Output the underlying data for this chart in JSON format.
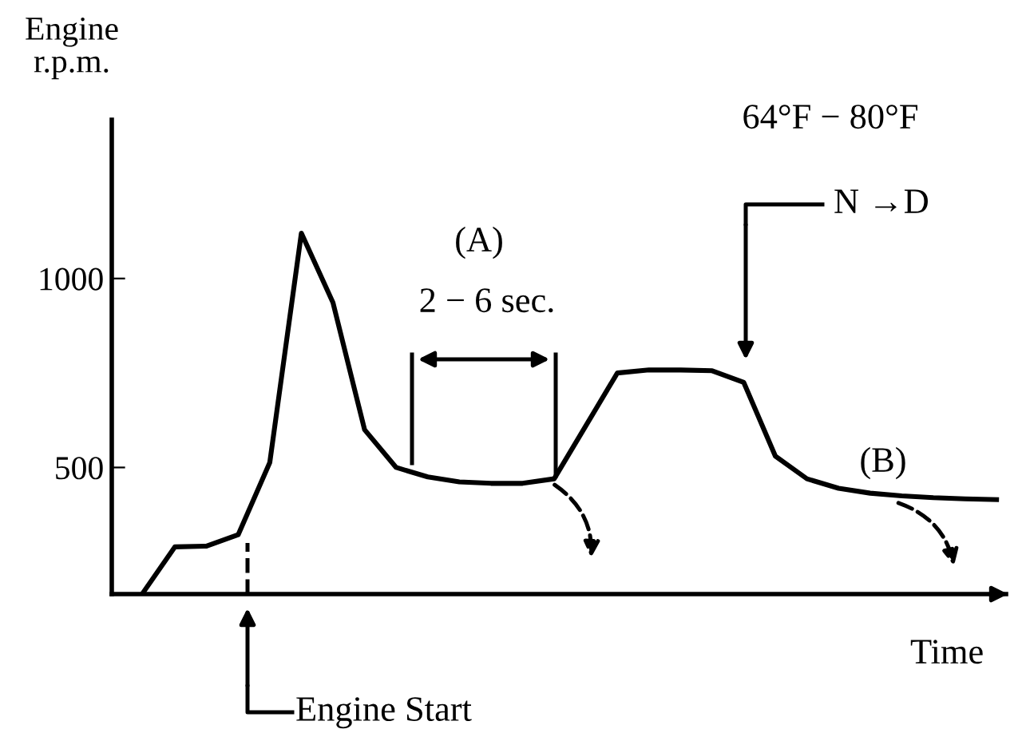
{
  "chart_data": {
    "type": "line",
    "xlabel": "Time",
    "ylabel": "Engine\nr.p.m.",
    "categories": [
      null,
      null,
      null,
      null,
      null,
      null,
      null,
      null,
      null,
      null,
      null,
      null,
      null,
      null,
      null,
      null,
      null,
      null,
      null,
      null,
      null,
      null,
      null,
      null,
      null,
      null,
      null,
      null
    ],
    "series": [
      {
        "color": "#000000",
        "values": [
          170,
          290,
          292,
          322,
          513,
          1120,
          936,
          600,
          500,
          475,
          462,
          458,
          458,
          470,
          610,
          750,
          758,
          758,
          756,
          725,
          530,
          470,
          445,
          432,
          425,
          420,
          417,
          415
        ]
      }
    ],
    "ylim": [
      165,
      1420
    ],
    "yticks": [
      500,
      1000
    ],
    "grid": false,
    "marker": "none",
    "line_style": "solid",
    "annotations": [
      "64°F − 80°F",
      "(A)",
      "2 − 6 sec.",
      "N →D",
      "(B)",
      "Engine Start"
    ]
  }
}
